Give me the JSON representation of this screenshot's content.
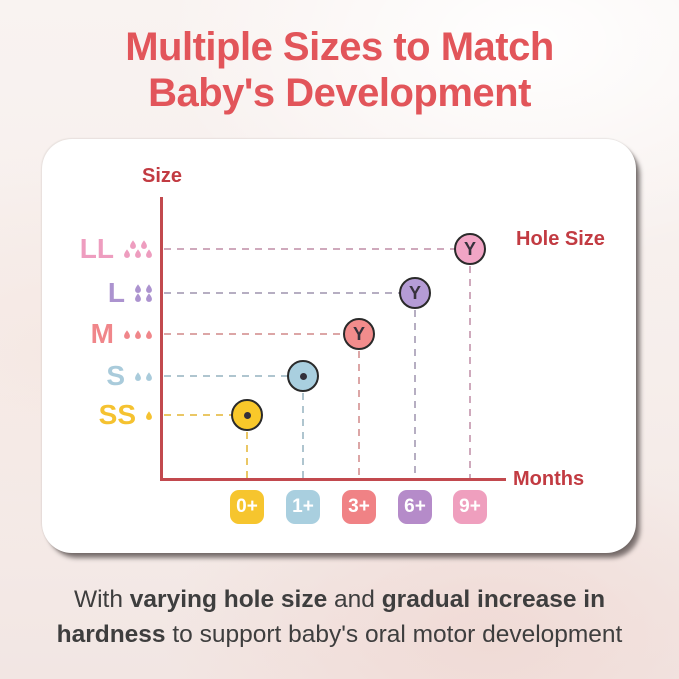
{
  "theme": {
    "title-color": "#E2555A",
    "axis-color": "#C2494E",
    "axis-label-color": "#C23B42",
    "body-text-color": "#3E3E3E",
    "card-bg": "#FFFFFF",
    "point-outline": "#2A2A2A"
  },
  "title": {
    "line1": "Multiple Sizes to Match",
    "line2": "Baby's Development"
  },
  "icons": {
    "flow_marker": "droplet-icon",
    "round_hole": "round-hole-dot-icon"
  },
  "chart_data": {
    "type": "scatter",
    "title": "Multiple Sizes to Match Baby's Development",
    "xlabel": "Months",
    "ylabel": "Size",
    "legend_label": "Hole Size",
    "x_ticks": [
      "0+",
      "1+",
      "3+",
      "6+",
      "9+"
    ],
    "y_ticks": [
      "SS",
      "S",
      "M",
      "L",
      "LL"
    ],
    "guides": "dashed drop-lines from each point to both axes",
    "points": [
      {
        "size": "SS",
        "months": "0+",
        "hole_type": "round",
        "hole_glyph": "",
        "droplet_count": 1,
        "droplet_rows": [
          1
        ],
        "point_color": "#F9C82A",
        "label_color": "#F5C230",
        "chip_color": "#F6C52E",
        "dash_color": "#EAC765"
      },
      {
        "size": "S",
        "months": "1+",
        "hole_type": "round",
        "hole_glyph": "",
        "droplet_count": 2,
        "droplet_rows": [
          2
        ],
        "point_color": "#A9CFDF",
        "label_color": "#A9CBDB",
        "chip_color": "#A9CFDF",
        "dash_color": "#AFC5CF"
      },
      {
        "size": "M",
        "months": "3+",
        "hole_type": "Y-cut",
        "hole_glyph": "Y",
        "droplet_count": 3,
        "droplet_rows": [
          3
        ],
        "point_color": "#F28C8C",
        "label_color": "#F0868A",
        "chip_color": "#F08285",
        "dash_color": "#DCA6A6"
      },
      {
        "size": "L",
        "months": "6+",
        "hole_type": "Y-cut",
        "hole_glyph": "Y",
        "droplet_count": 4,
        "droplet_rows": [
          2,
          2
        ],
        "point_color": "#B59CD6",
        "label_color": "#AC93CF",
        "chip_color": "#B58BC9",
        "dash_color": "#B6AEC2"
      },
      {
        "size": "LL",
        "months": "9+",
        "hole_type": "Y-cut",
        "hole_glyph": "Y",
        "droplet_count": 5,
        "droplet_rows": [
          2,
          3
        ],
        "point_color": "#F1A5C5",
        "label_color": "#EE9DBF",
        "chip_color": "#EF9FBE",
        "dash_color": "#CFA9BC"
      }
    ]
  },
  "footer": {
    "lines": [
      {
        "segments": [
          {
            "t": "With ",
            "b": false
          },
          {
            "t": "varying hole size",
            "b": true
          },
          {
            "t": " and ",
            "b": false
          },
          {
            "t": "gradual increase in",
            "b": true
          }
        ]
      },
      {
        "segments": [
          {
            "t": "hardness",
            "b": true
          },
          {
            "t": " to support baby's oral motor development",
            "b": false
          }
        ]
      }
    ]
  }
}
